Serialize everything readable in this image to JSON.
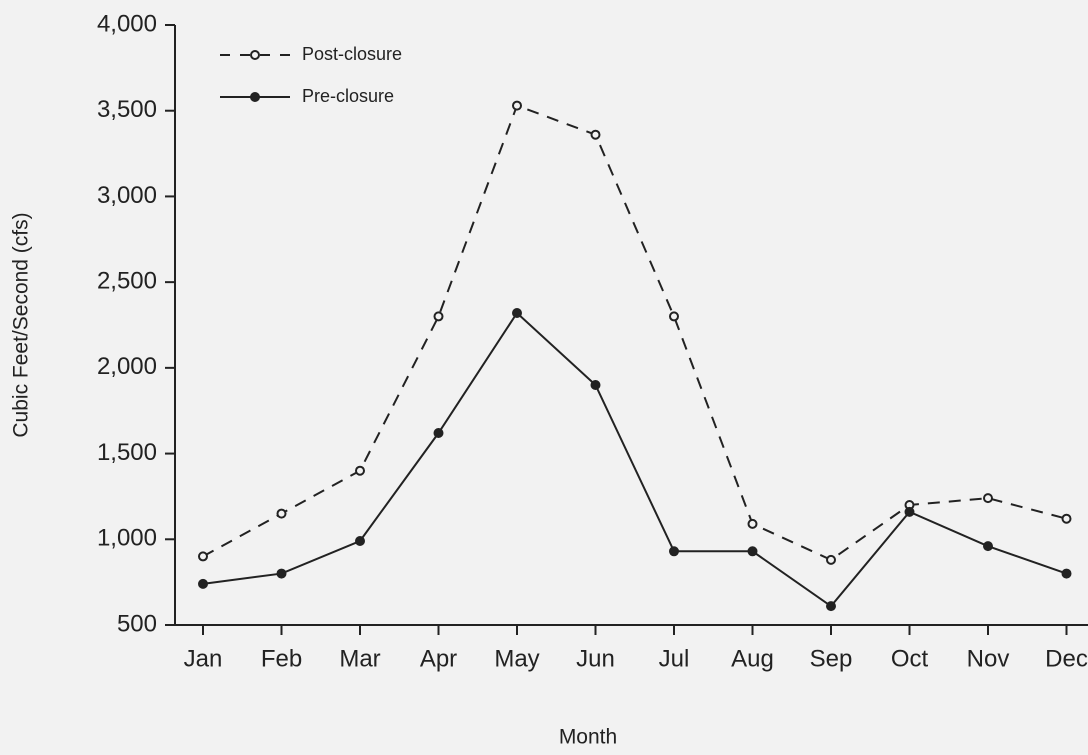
{
  "chart_data": {
    "type": "line",
    "x_label": "Month",
    "y_label": "Cubic Feet/Second (cfs)",
    "categories": [
      "Jan",
      "Feb",
      "Mar",
      "Apr",
      "May",
      "Jun",
      "Jul",
      "Aug",
      "Sep",
      "Oct",
      "Nov",
      "Dec"
    ],
    "series": [
      {
        "name": "Post-closure",
        "color": "#222222",
        "dashed": true,
        "marker": "open",
        "values": [
          900,
          1150,
          1400,
          2300,
          3530,
          3360,
          2300,
          1090,
          880,
          1200,
          1240,
          1120
        ]
      },
      {
        "name": "Pre-closure",
        "color": "#222222",
        "dashed": false,
        "marker": "filled",
        "values": [
          740,
          800,
          990,
          1620,
          2320,
          1900,
          930,
          930,
          610,
          1160,
          960,
          800
        ]
      }
    ],
    "ylim": [
      500,
      4000
    ],
    "yticks": [
      500,
      {
        "value": 1000,
        "label": "1,000"
      },
      {
        "value": 1500,
        "label": "1,500"
      },
      {
        "value": 2000,
        "label": "2,000"
      },
      {
        "value": 2500,
        "label": "2,500"
      },
      {
        "value": 3000,
        "label": "3,000"
      },
      {
        "value": 3500,
        "label": "3,500"
      },
      {
        "value": 4000,
        "label": "4,000"
      }
    ],
    "grid": false,
    "legend": "top-left"
  }
}
